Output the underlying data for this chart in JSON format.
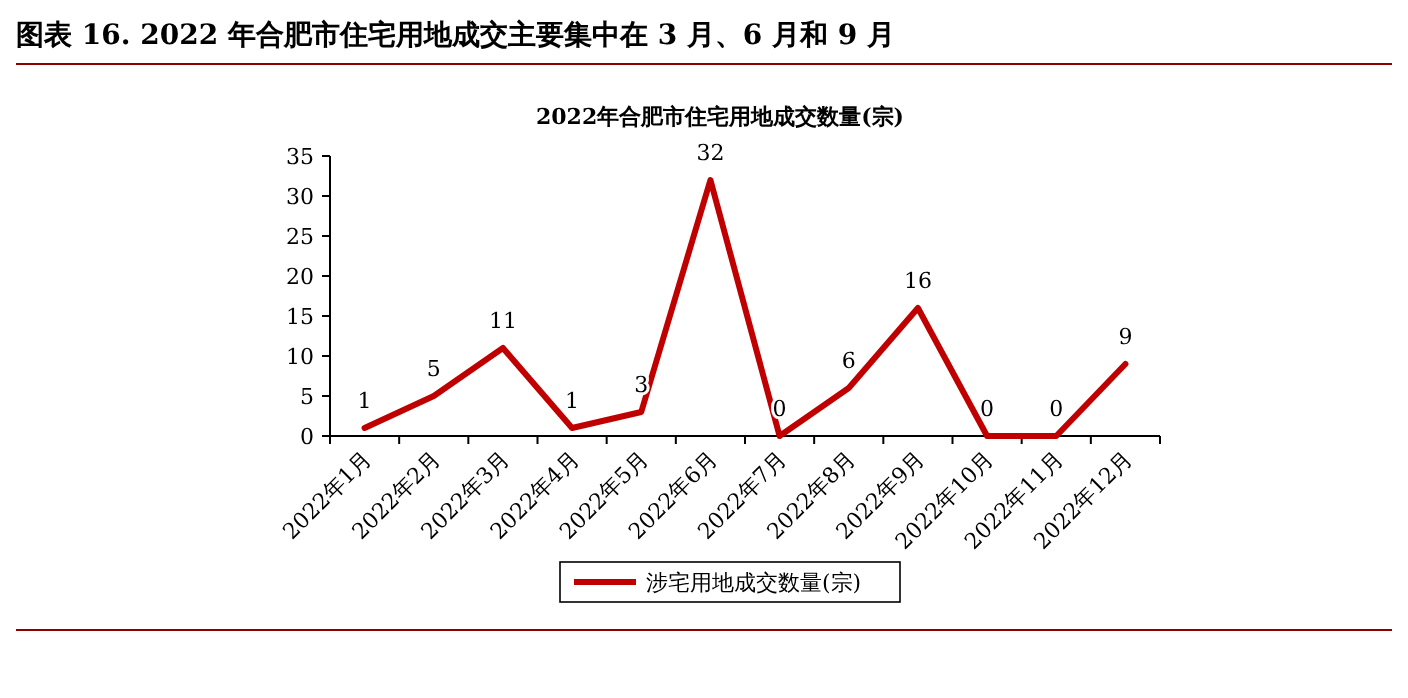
{
  "chart_data": {
    "type": "line",
    "title": "图表 16. 2022 年合肥市住宅用地成交主要集中在 3 月、6 月和 9 月",
    "subtitle": "2022年合肥市住宅用地成交数量(宗)",
    "categories": [
      "2022年1月",
      "2022年2月",
      "2022年3月",
      "2022年4月",
      "2022年5月",
      "2022年6月",
      "2022年7月",
      "2022年8月",
      "2022年9月",
      "2022年10月",
      "2022年11月",
      "2022年12月"
    ],
    "series": [
      {
        "name": "涉宅用地成交数量(宗)",
        "color": "#c00000",
        "values": [
          1,
          5,
          11,
          1,
          3,
          32,
          0,
          6,
          16,
          0,
          0,
          9
        ]
      }
    ],
    "ylim": [
      0,
      35
    ],
    "yticks": [
      0,
      5,
      10,
      15,
      20,
      25,
      30,
      35
    ],
    "data_labels": true,
    "legend": "bottom"
  }
}
